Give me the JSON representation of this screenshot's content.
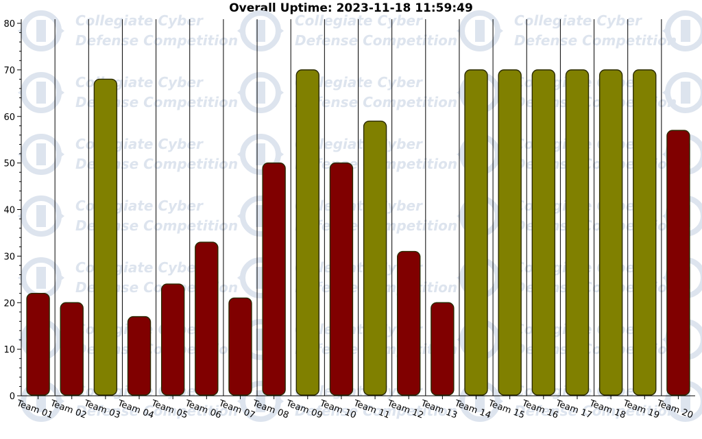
{
  "chart_data": {
    "type": "bar",
    "title": "Overall Uptime: 2023-11-18 11:59:49",
    "xlabel": "",
    "ylabel": "",
    "ylim": [
      0,
      80
    ],
    "yticks": [
      0,
      10,
      20,
      30,
      40,
      50,
      60,
      70,
      80
    ],
    "grid": "vertical",
    "legend": "none",
    "categories": [
      "Team 01",
      "Team 02",
      "Team 03",
      "Team 04",
      "Team 05",
      "Team 06",
      "Team 07",
      "Team 08",
      "Team 09",
      "Team 10",
      "Team 11",
      "Team 12",
      "Team 13",
      "Team 14",
      "Team 15",
      "Team 16",
      "Team 17",
      "Team 18",
      "Team 19",
      "Team 20"
    ],
    "values": [
      22,
      20,
      68,
      17,
      24,
      33,
      21,
      50,
      70,
      50,
      59,
      31,
      20,
      70,
      70,
      70,
      70,
      70,
      70,
      57
    ],
    "bar_colors": [
      "#800000",
      "#800000",
      "#808000",
      "#800000",
      "#800000",
      "#800000",
      "#800000",
      "#800000",
      "#808000",
      "#800000",
      "#808000",
      "#800000",
      "#800000",
      "#808000",
      "#808000",
      "#808000",
      "#808000",
      "#808000",
      "#808000",
      "#800000"
    ],
    "colors": {
      "low": "#800000",
      "high": "#808000"
    },
    "watermark": {
      "line1": "Collegiate Cyber",
      "line2": "Defense Competition"
    }
  }
}
